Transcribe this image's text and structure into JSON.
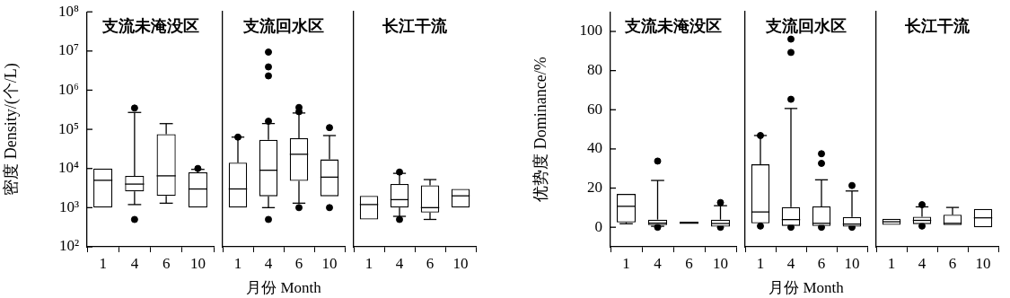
{
  "chart_data": [
    {
      "type": "box",
      "title": "支流未淹没区",
      "ylabel": "密度 Density/(个/L)",
      "categories": [
        "1",
        "4",
        "6",
        "10"
      ],
      "log": true,
      "ylim": [
        100,
        100000000
      ],
      "yticks": [
        {
          "value": 100,
          "label": "10²"
        },
        {
          "value": 1000,
          "label": "10³"
        },
        {
          "value": 10000,
          "label": "10⁴"
        },
        {
          "value": 100000,
          "label": "10⁵"
        },
        {
          "value": 1000000,
          "label": "10⁶"
        },
        {
          "value": 10000000,
          "label": "10⁷"
        },
        {
          "value": 100000000,
          "label": "10⁸"
        }
      ],
      "boxes": [
        {
          "low": 1000,
          "q1": 1000,
          "median": 5000,
          "q3": 10000,
          "high": 10000
        },
        {
          "low": 1200,
          "q1": 2600,
          "median": 4000,
          "q3": 6500,
          "high": 270000,
          "outliers": [
            350000,
            500
          ]
        },
        {
          "low": 1300,
          "q1": 2000,
          "median": 6500,
          "q3": 75000,
          "high": 140000
        },
        {
          "low": 1000,
          "q1": 1000,
          "median": 3000,
          "q3": 8000,
          "high": 9500,
          "outliers": [
            10000
          ]
        }
      ]
    },
    {
      "type": "box",
      "title": "支流回水区",
      "xlabel": "月份 Month",
      "categories": [
        "1",
        "4",
        "6",
        "10"
      ],
      "log": true,
      "ylim": [
        100,
        100000000
      ],
      "tick_labels": "x",
      "boxes": [
        {
          "low": 1000,
          "q1": 1000,
          "median": 3000,
          "q3": 14000,
          "high": 63000,
          "outliers": [
            63000
          ]
        },
        {
          "low": 1000,
          "q1": 1950,
          "median": 9000,
          "q3": 54000,
          "high": 140000,
          "outliers": [
            9300000,
            3900000,
            2300000,
            160000,
            500
          ]
        },
        {
          "low": 1300,
          "q1": 4800,
          "median": 23000,
          "q3": 59000,
          "high": 260000,
          "outliers": [
            360000,
            280000,
            1000
          ]
        },
        {
          "low": 1950,
          "q1": 1950,
          "median": 6000,
          "q3": 17000,
          "high": 69000,
          "outliers": [
            110000,
            1000
          ]
        }
      ]
    },
    {
      "type": "box",
      "title": "长江干流",
      "categories": [
        "1",
        "4",
        "6",
        "10"
      ],
      "log": true,
      "ylim": [
        100,
        100000000
      ],
      "tick_labels": "x",
      "boxes": [
        {
          "low": 500,
          "q1": 500,
          "median": 1200,
          "q3": 2000,
          "high": 2000
        },
        {
          "low": 600,
          "q1": 1000,
          "median": 1600,
          "q3": 4000,
          "high": 7500,
          "outliers": [
            8100,
            500
          ]
        },
        {
          "low": 500,
          "q1": 750,
          "median": 1000,
          "q3": 3700,
          "high": 5200
        },
        {
          "low": 1000,
          "q1": 1000,
          "median": 2000,
          "q3": 3000,
          "high": 3000
        }
      ]
    },
    {
      "type": "box",
      "title": "支流未淹没区",
      "ylabel": "优势度 Dominance/%",
      "categories": [
        "1",
        "4",
        "6",
        "10"
      ],
      "ylim": [
        -10,
        110
      ],
      "yticks": [
        0,
        20,
        40,
        60,
        80,
        100
      ],
      "boxes": [
        {
          "low": 1.8,
          "q1": 2.5,
          "median": 10.7,
          "q3": 17,
          "high": 17
        },
        {
          "low": 0.5,
          "q1": 1.1,
          "median": 2.1,
          "q3": 3.9,
          "high": 23.9,
          "outliers": [
            33.8,
            0
          ]
        },
        {
          "low": 1.7,
          "q1": 1.7,
          "median": 2.2,
          "q3": 2.8,
          "high": 2.8
        },
        {
          "low": 0.3,
          "q1": 0.3,
          "median": 1.9,
          "q3": 3.9,
          "high": 11,
          "outliers": [
            12.6,
            0
          ]
        }
      ]
    },
    {
      "type": "box",
      "title": "支流回水区",
      "xlabel": "月份 Month",
      "categories": [
        "1",
        "4",
        "6",
        "10"
      ],
      "ylim": [
        -10,
        110
      ],
      "tick_labels": "x",
      "boxes": [
        {
          "low": 2,
          "q1": 2,
          "median": 7.8,
          "q3": 32.1,
          "high": 46.8,
          "outliers": [
            46.8,
            0.6
          ]
        },
        {
          "low": 0.7,
          "q1": 0.7,
          "median": 3.9,
          "q3": 10.3,
          "high": 60.6,
          "outliers": [
            96,
            89.2,
            65.3,
            0
          ]
        },
        {
          "low": 0.6,
          "q1": 0.6,
          "median": 2,
          "q3": 10.6,
          "high": 24.2,
          "outliers": [
            37.5,
            32.6,
            0
          ]
        },
        {
          "low": 0.3,
          "q1": 0.3,
          "median": 1.6,
          "q3": 5.2,
          "high": 18.5,
          "outliers": [
            21.3,
            0
          ]
        }
      ]
    },
    {
      "type": "box",
      "title": "长江干流",
      "categories": [
        "1",
        "4",
        "6",
        "10"
      ],
      "ylim": [
        -10,
        110
      ],
      "tick_labels": "x",
      "boxes": [
        {
          "low": 1.2,
          "q1": 1.2,
          "median": 2.8,
          "q3": 4.3,
          "high": 4.3
        },
        {
          "low": 1.6,
          "q1": 1.6,
          "median": 3.5,
          "q3": 5.4,
          "high": 10.4,
          "outliers": [
            11.5,
            0.6
          ]
        },
        {
          "low": 1.1,
          "q1": 1.1,
          "median": 2,
          "q3": 6.4,
          "high": 10.1
        },
        {
          "low": 0,
          "q1": 0,
          "median": 4.8,
          "q3": 9.4,
          "high": 9.4
        }
      ]
    }
  ]
}
